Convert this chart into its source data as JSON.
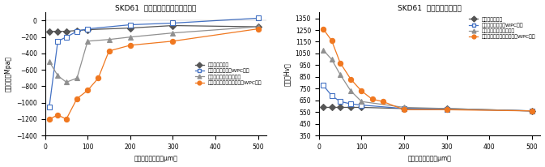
{
  "title1": "SKD61  各処理別圧縮残留応力分布",
  "title2": "SKD61  各処理別硬度分布",
  "xlabel": "表面からの深さ（μm）",
  "ylabel1": "残留応力（Mpa）",
  "ylabel2": "硬さ（Hv）",
  "stress_x1": [
    10,
    30,
    50,
    75,
    100,
    200,
    300,
    500
  ],
  "stress_y1": [
    -130,
    -130,
    -130,
    -120,
    -110,
    -90,
    -60,
    -75
  ],
  "stress_x2": [
    10,
    30,
    50,
    75,
    100,
    200,
    300,
    500
  ],
  "stress_y2": [
    -1050,
    -250,
    -200,
    -130,
    -100,
    -50,
    -30,
    30
  ],
  "stress_x3": [
    10,
    30,
    50,
    75,
    100,
    150,
    200,
    300,
    500
  ],
  "stress_y3": [
    -500,
    -670,
    -750,
    -700,
    -250,
    -230,
    -200,
    -150,
    -75
  ],
  "stress_x4": [
    10,
    30,
    50,
    75,
    100,
    125,
    150,
    200,
    300,
    500
  ],
  "stress_y4": [
    -1200,
    -1150,
    -1200,
    -950,
    -850,
    -700,
    -370,
    -300,
    -250,
    -100
  ],
  "hard_x1": [
    10,
    30,
    50,
    75,
    100,
    200,
    300,
    500
  ],
  "hard_y1": [
    590,
    590,
    590,
    590,
    590,
    580,
    580,
    560
  ],
  "hard_x2": [
    10,
    30,
    50,
    75,
    100,
    200,
    300,
    500
  ],
  "hard_y2": [
    780,
    690,
    640,
    620,
    610,
    580,
    575,
    560
  ],
  "hard_x3": [
    10,
    30,
    50,
    75,
    100,
    200,
    300,
    500
  ],
  "hard_y3": [
    1080,
    1000,
    870,
    730,
    640,
    590,
    580,
    560
  ],
  "hard_x4": [
    10,
    30,
    50,
    75,
    100,
    125,
    150,
    200,
    300,
    500
  ],
  "hard_y4": [
    1260,
    1160,
    970,
    830,
    730,
    660,
    640,
    570,
    570,
    560
  ],
  "color1": "#555555",
  "color2": "#4472c4",
  "color3": "#909090",
  "color4": "#f07820",
  "legend1": "焼入・焼戻し品",
  "legend2": "焼入・焼戻し品＋WPC処理",
  "legend3": "焼入・焼戻し品＋　窒化",
  "legend4": "焼入・焼戻し品＋　窒化＋WPC処理",
  "stress_yticks": [
    -1400,
    -1200,
    -1000,
    -800,
    -600,
    -400,
    -200,
    0
  ],
  "hard_yticks": [
    350,
    450,
    550,
    650,
    750,
    850,
    950,
    1050,
    1150,
    1250,
    1350
  ],
  "ylim1": [
    -1400,
    100
  ],
  "ylim2": [
    350,
    1400
  ],
  "xlim": [
    0,
    520
  ],
  "xticks": [
    0,
    100,
    200,
    300,
    400,
    500
  ]
}
